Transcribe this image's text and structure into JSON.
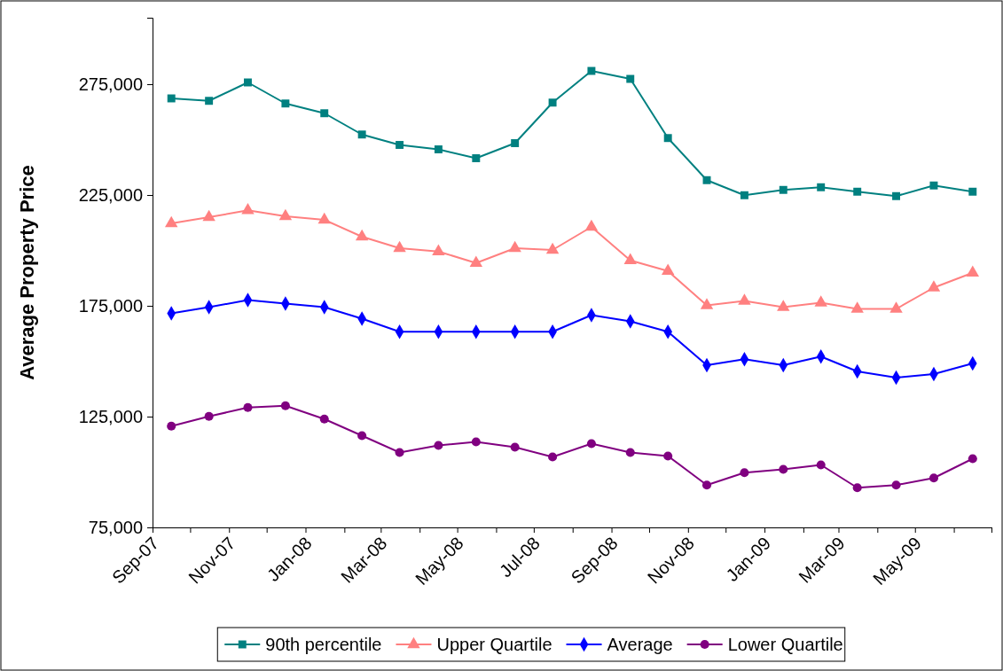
{
  "chart_data": {
    "type": "line",
    "ylabel": "Average Property Price",
    "x": [
      "2007-09-16",
      "2007-10-16",
      "2007-11-16",
      "2007-12-16",
      "2008-01-16",
      "2008-02-15",
      "2008-03-16",
      "2008-04-16",
      "2008-05-16",
      "2008-06-16",
      "2008-07-16",
      "2008-08-16",
      "2008-09-16",
      "2008-10-16",
      "2008-11-16",
      "2008-12-16",
      "2009-01-16",
      "2009-02-15",
      "2009-03-16",
      "2009-04-16",
      "2009-05-16",
      "2009-06-16"
    ],
    "series": [
      {
        "name": "90th percentile",
        "color": "#008080",
        "marker": "square",
        "values": [
          268600,
          267500,
          275800,
          266300,
          261900,
          252300,
          247600,
          245600,
          241600,
          248400,
          266700,
          281000,
          277400,
          250700,
          231700,
          224900,
          227300,
          228500,
          226500,
          224500,
          229300,
          226500
        ]
      },
      {
        "name": "Upper Quartile",
        "color": "#ff8080",
        "marker": "triangle",
        "values": [
          212200,
          215000,
          218100,
          215400,
          213800,
          206200,
          201000,
          199500,
          194300,
          201000,
          200200,
          210600,
          195500,
          190700,
          175200,
          177200,
          174400,
          176400,
          173600,
          173600,
          183200,
          189900
        ]
      },
      {
        "name": "Average",
        "color": "#0000ff",
        "marker": "diamond",
        "values": [
          171600,
          174400,
          177600,
          176000,
          174400,
          169200,
          163300,
          163300,
          163300,
          163300,
          163300,
          170800,
          168000,
          163300,
          148200,
          150900,
          148200,
          152100,
          145400,
          142600,
          144200,
          149000
        ]
      },
      {
        "name": "Lower Quartile",
        "color": "#800080",
        "marker": "circle",
        "values": [
          120700,
          125100,
          129100,
          129900,
          123900,
          116400,
          108800,
          112000,
          113600,
          111200,
          106800,
          112800,
          108800,
          107200,
          94100,
          99700,
          101200,
          103200,
          92900,
          94100,
          97300,
          106000
        ]
      }
    ],
    "xlim": [
      "2007-09-01",
      "2009-07-01"
    ],
    "xticks": [
      {
        "value": "2007-09-01",
        "label": "Sep-07"
      },
      {
        "value": "2007-10-01",
        "label": null
      },
      {
        "value": "2007-11-01",
        "label": "Nov-07"
      },
      {
        "value": "2007-12-01",
        "label": null
      },
      {
        "value": "2008-01-01",
        "label": "Jan-08"
      },
      {
        "value": "2008-02-01",
        "label": null
      },
      {
        "value": "2008-03-01",
        "label": "Mar-08"
      },
      {
        "value": "2008-04-01",
        "label": null
      },
      {
        "value": "2008-05-01",
        "label": "May-08"
      },
      {
        "value": "2008-06-01",
        "label": null
      },
      {
        "value": "2008-07-01",
        "label": "Jul-08"
      },
      {
        "value": "2008-08-01",
        "label": null
      },
      {
        "value": "2008-09-01",
        "label": "Sep-08"
      },
      {
        "value": "2008-10-01",
        "label": null
      },
      {
        "value": "2008-11-01",
        "label": "Nov-08"
      },
      {
        "value": "2008-12-01",
        "label": null
      },
      {
        "value": "2009-01-01",
        "label": "Jan-09"
      },
      {
        "value": "2009-02-01",
        "label": null
      },
      {
        "value": "2009-03-01",
        "label": "Mar-09"
      },
      {
        "value": "2009-04-01",
        "label": null
      },
      {
        "value": "2009-05-01",
        "label": "May-09"
      },
      {
        "value": "2009-06-01",
        "label": null
      },
      {
        "value": "2009-07-01",
        "label": null
      }
    ],
    "ylim": [
      75000,
      305000
    ],
    "yticks": [
      {
        "value": 75000,
        "label": "75,000"
      },
      {
        "value": 125000,
        "label": "125,000"
      },
      {
        "value": 175000,
        "label": "175,000"
      },
      {
        "value": 225000,
        "label": "225,000"
      },
      {
        "value": 275000,
        "label": "275,000"
      }
    ],
    "grid": false,
    "legend": "bottom",
    "line_style": "solid"
  }
}
